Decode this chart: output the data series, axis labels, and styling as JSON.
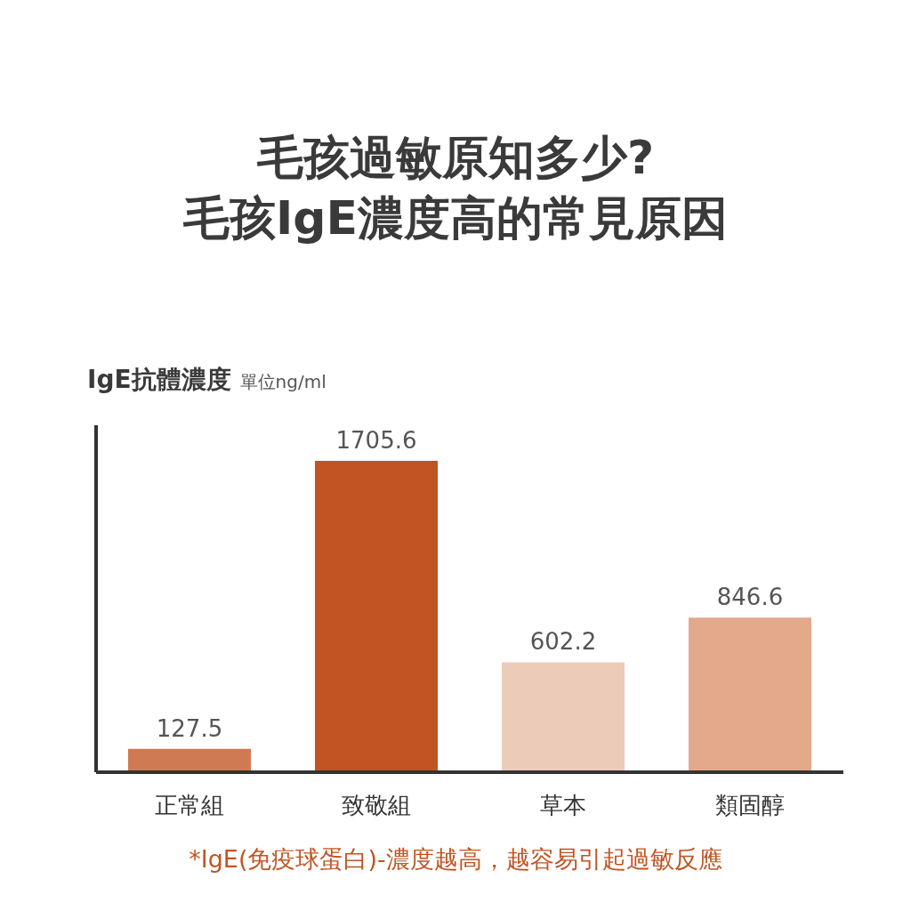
{
  "chart_data": {
    "type": "bar",
    "title": "毛孩過敏原知多少?",
    "subtitle": "毛孩IgE濃度高的常見原因",
    "ylabel": "IgE抗體濃度",
    "categories": [
      "正常組",
      "致敬組",
      "草本",
      "類固醇"
    ],
    "values": [
      127.5,
      1705.6,
      602.2,
      846.6
    ],
    "colors": [
      "#cf7a52",
      "#c05523",
      "#eccbb9",
      "#e2a98b"
    ],
    "ylim": [
      0,
      1900
    ],
    "data_labels": true,
    "annotations": [
      "單位ng/ml",
      "*IgE(免疫球蛋白)-濃度越高，越容易引起過敏反應"
    ]
  }
}
